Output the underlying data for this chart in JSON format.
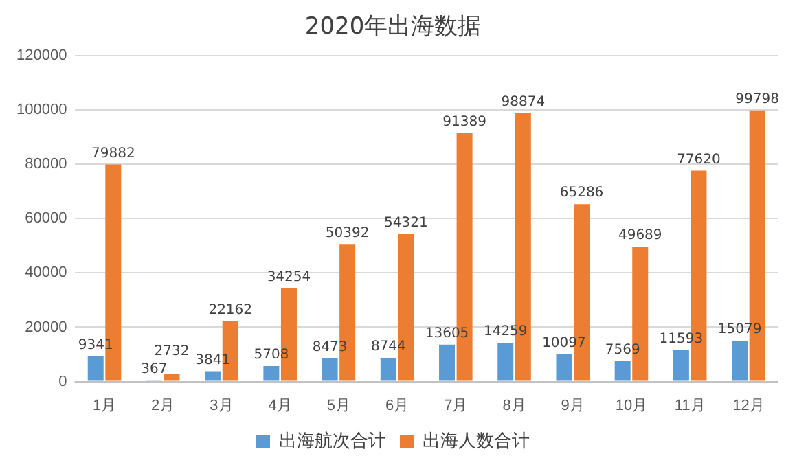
{
  "chart_data": {
    "type": "bar",
    "title": "2020年出海数据",
    "categories": [
      "1月",
      "2月",
      "3月",
      "4月",
      "5月",
      "6月",
      "7月",
      "8月",
      "9月",
      "10月",
      "11月",
      "12月"
    ],
    "series": [
      {
        "name": "出海航次合计",
        "color": "#5b9bd5",
        "values": [
          9341,
          367,
          3841,
          5708,
          8473,
          8744,
          13605,
          14259,
          10097,
          7569,
          11593,
          15079
        ]
      },
      {
        "name": "出海人数合计",
        "color": "#ed7d31",
        "values": [
          79882,
          2732,
          22162,
          34254,
          50392,
          54321,
          91389,
          98874,
          65286,
          49689,
          77620,
          99798
        ]
      }
    ],
    "ylim": [
      0,
      120000
    ],
    "yticks": [
      0,
      20000,
      40000,
      60000,
      80000,
      100000,
      120000
    ],
    "grid": "y",
    "legend": "bottom",
    "data_labels": true
  }
}
